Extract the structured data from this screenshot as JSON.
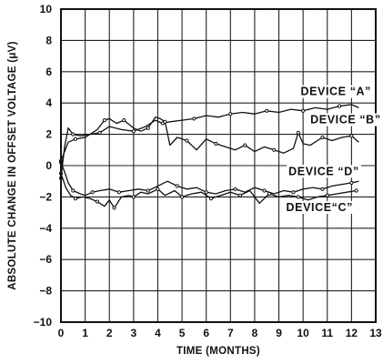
{
  "chart_data": {
    "type": "line",
    "title": "",
    "xlabel": "TIME (MONTHS)",
    "ylabel": "ABSOLUTE CHANGE IN OFFSET VOLTAGE (μV)",
    "xlim": [
      0,
      13
    ],
    "ylim": [
      -10,
      10
    ],
    "x_ticks": [
      "0",
      "1",
      "2",
      "3",
      "4",
      "5",
      "6",
      "7",
      "8",
      "9",
      "10",
      "11",
      "12",
      "13"
    ],
    "y_ticks": [
      "10",
      "8",
      "6",
      "4",
      "2",
      "0",
      "−2",
      "−4",
      "−6",
      "−8",
      "−10"
    ],
    "grid": true,
    "series": [
      {
        "name": "DEVICE “A”",
        "label_at": [
          9.9,
          4.5
        ],
        "x": [
          0,
          0.15,
          0.3,
          0.5,
          0.8,
          1.2,
          1.6,
          2.0,
          2.5,
          3.0,
          3.5,
          3.9,
          4.2,
          4.5,
          5.0,
          5.5,
          6.0,
          6.5,
          7.0,
          7.5,
          8.0,
          8.5,
          9.0,
          9.5,
          10.0,
          10.5,
          11.0,
          11.5,
          12.0,
          12.3
        ],
        "y": [
          -0.8,
          1.2,
          2.4,
          2.0,
          1.9,
          2.0,
          2.1,
          2.5,
          2.3,
          2.2,
          2.5,
          2.9,
          2.7,
          2.8,
          2.9,
          3.0,
          3.2,
          3.1,
          3.3,
          3.4,
          3.3,
          3.5,
          3.4,
          3.6,
          3.5,
          3.7,
          3.6,
          3.8,
          3.9,
          3.7
        ]
      },
      {
        "name": "DEVICE “B”",
        "label_at": [
          10.3,
          2.7
        ],
        "x": [
          0,
          0.15,
          0.3,
          0.6,
          1.0,
          1.5,
          1.8,
          2.0,
          2.3,
          2.6,
          3.0,
          3.3,
          3.6,
          3.9,
          4.1,
          4.3,
          4.5,
          4.8,
          5.2,
          5.6,
          6.0,
          6.4,
          6.8,
          7.2,
          7.6,
          8.0,
          8.4,
          8.8,
          9.2,
          9.6,
          9.8,
          10.0,
          10.3,
          10.8,
          11.2,
          11.6,
          12.0,
          12.3
        ],
        "y": [
          0.3,
          0.9,
          1.5,
          1.7,
          1.8,
          2.3,
          2.9,
          3.0,
          2.7,
          2.9,
          2.4,
          2.2,
          2.4,
          3.1,
          3.0,
          2.8,
          1.3,
          1.8,
          1.6,
          1.0,
          1.7,
          1.4,
          1.2,
          1.0,
          1.3,
          0.9,
          1.2,
          1.0,
          0.8,
          1.1,
          2.1,
          1.4,
          1.3,
          1.8,
          1.6,
          1.8,
          1.9,
          1.5
        ]
      },
      {
        "name": "DEVICE “D”",
        "label_at": [
          9.4,
          -0.6
        ],
        "x": [
          0,
          0.15,
          0.3,
          0.5,
          0.8,
          1.0,
          1.3,
          1.6,
          2.0,
          2.4,
          2.8,
          3.2,
          3.6,
          4.0,
          4.4,
          4.8,
          5.2,
          5.6,
          6.0,
          6.4,
          6.8,
          7.2,
          7.6,
          8.0,
          8.4,
          8.8,
          9.2,
          9.6,
          10.0,
          10.4,
          10.8,
          11.2,
          11.6,
          12.0,
          12.3
        ],
        "y": [
          0.2,
          -0.4,
          -1.1,
          -1.6,
          -1.8,
          -1.9,
          -1.7,
          -1.6,
          -1.5,
          -1.7,
          -1.6,
          -1.5,
          -1.6,
          -1.3,
          -1.0,
          -1.3,
          -1.5,
          -1.4,
          -1.7,
          -1.8,
          -1.6,
          -1.5,
          -1.7,
          -1.4,
          -1.6,
          -1.8,
          -1.6,
          -1.7,
          -1.5,
          -1.4,
          -1.5,
          -1.3,
          -1.2,
          -1.1,
          -1.0
        ]
      },
      {
        "name": "DEVICE“C”",
        "label_at": [
          9.3,
          -2.9
        ],
        "x": [
          0,
          0.2,
          0.4,
          0.6,
          0.9,
          1.2,
          1.5,
          1.8,
          2.0,
          2.2,
          2.5,
          2.8,
          3.0,
          3.3,
          3.6,
          4.0,
          4.3,
          4.7,
          5.0,
          5.4,
          5.8,
          6.2,
          6.6,
          7.0,
          7.4,
          7.8,
          8.2,
          8.6,
          9.0,
          9.4,
          9.8,
          10.2,
          10.6,
          11.0,
          11.4,
          11.8,
          12.2
        ],
        "y": [
          -0.5,
          -1.4,
          -1.9,
          -2.1,
          -2.0,
          -2.1,
          -2.3,
          -2.6,
          -2.2,
          -2.7,
          -2.0,
          -1.9,
          -2.0,
          -1.7,
          -1.8,
          -1.5,
          -1.9,
          -1.6,
          -2.0,
          -1.8,
          -1.7,
          -2.1,
          -1.9,
          -1.7,
          -1.9,
          -1.6,
          -2.4,
          -1.8,
          -2.0,
          -1.9,
          -2.0,
          -2.2,
          -2.0,
          -1.9,
          -1.8,
          -1.7,
          -1.6
        ]
      }
    ]
  }
}
